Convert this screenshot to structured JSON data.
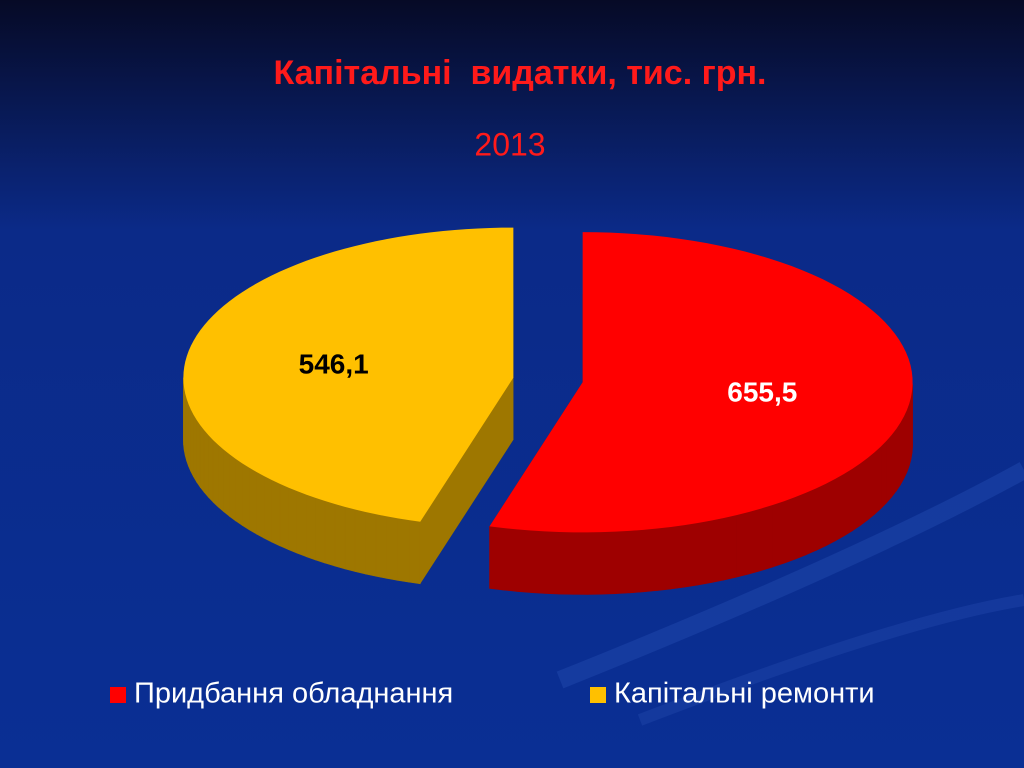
{
  "chart_data": {
    "type": "pie",
    "title": "Капітальні  видатки, тис. грн.",
    "subtitle": "2013",
    "categories": [
      "Придбання обладнання",
      "Капітальні ремонти"
    ],
    "values": [
      655.5,
      546.1
    ],
    "value_labels": [
      "655,5",
      "546,1"
    ],
    "colors": [
      "#ff0000",
      "#ffc000"
    ],
    "legend": "bottom"
  }
}
